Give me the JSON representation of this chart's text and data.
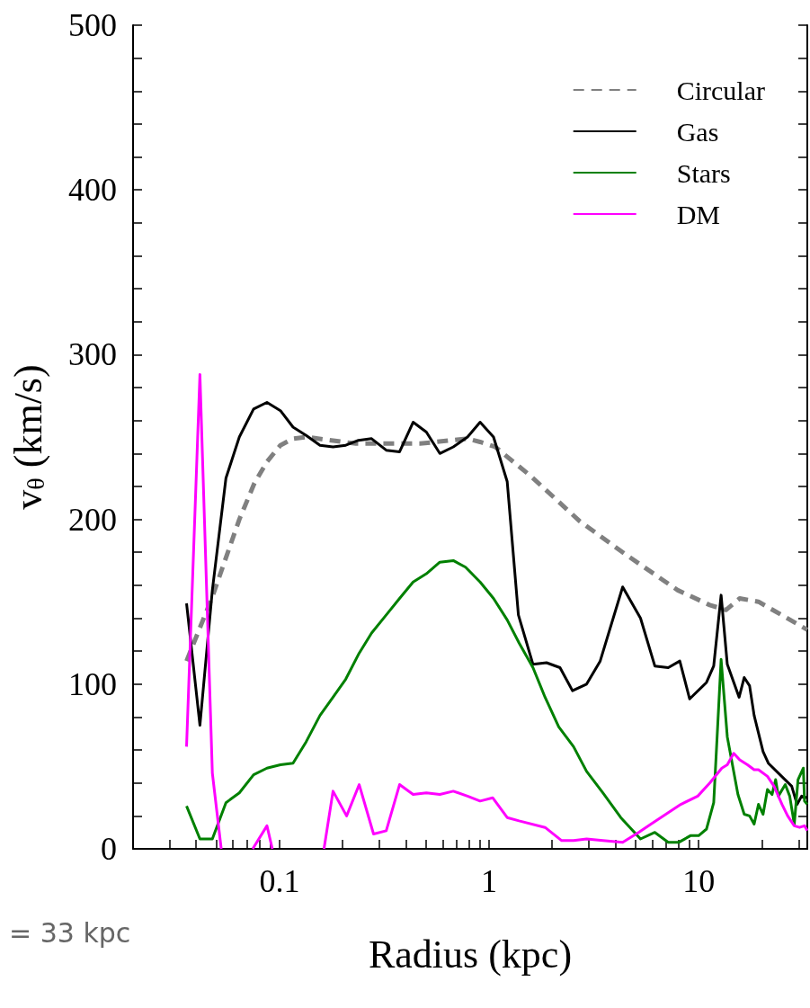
{
  "chart_data": {
    "type": "line",
    "xlabel": "Radius (kpc)",
    "ylabel": "v$_{θ}$ (km/s)",
    "log": "x",
    "xlim": [
      0.02,
      33
    ],
    "ylim": [
      0,
      500
    ],
    "xticks": [
      {
        "value": 0.02,
        "label": null
      },
      {
        "value": 0.03,
        "label": null
      },
      {
        "value": 0.04,
        "label": null
      },
      {
        "value": 0.05,
        "label": null
      },
      {
        "value": 0.06,
        "label": null
      },
      {
        "value": 0.07,
        "label": null
      },
      {
        "value": 0.08,
        "label": null
      },
      {
        "value": 0.09,
        "label": null
      },
      0.1,
      {
        "value": 0.2,
        "label": null
      },
      {
        "value": 0.3,
        "label": null
      },
      {
        "value": 0.4,
        "label": null
      },
      {
        "value": 0.5,
        "label": null
      },
      {
        "value": 0.6,
        "label": null
      },
      {
        "value": 0.7,
        "label": null
      },
      {
        "value": 0.8,
        "label": null
      },
      {
        "value": 0.9,
        "label": null
      },
      1,
      {
        "value": 2,
        "label": null
      },
      {
        "value": 3,
        "label": null
      },
      {
        "value": 4,
        "label": null
      },
      {
        "value": 5,
        "label": null
      },
      {
        "value": 6,
        "label": null
      },
      {
        "value": 7,
        "label": null
      },
      {
        "value": 8,
        "label": null
      },
      {
        "value": 9,
        "label": null
      },
      10,
      {
        "value": 20,
        "label": null
      },
      {
        "value": 30,
        "label": null
      }
    ],
    "yticks": [
      0,
      {
        "value": 20,
        "label": null
      },
      {
        "value": 40,
        "label": null
      },
      {
        "value": 60,
        "label": null
      },
      {
        "value": 80,
        "label": null
      },
      100,
      {
        "value": 120,
        "label": null
      },
      {
        "value": 140,
        "label": null
      },
      {
        "value": 160,
        "label": null
      },
      {
        "value": 180,
        "label": null
      },
      200,
      {
        "value": 220,
        "label": null
      },
      {
        "value": 240,
        "label": null
      },
      {
        "value": 260,
        "label": null
      },
      {
        "value": 280,
        "label": null
      },
      300,
      {
        "value": 320,
        "label": null
      },
      {
        "value": 340,
        "label": null
      },
      {
        "value": 360,
        "label": null
      },
      {
        "value": 380,
        "label": null
      },
      400,
      {
        "value": 420,
        "label": null
      },
      {
        "value": 440,
        "label": null
      },
      {
        "value": 460,
        "label": null
      },
      {
        "value": 480,
        "label": null
      },
      500
    ],
    "grid": false,
    "legend": "top right",
    "marker": "none",
    "annotations": [
      "= 33 kpc"
    ],
    "series": [
      {
        "name": "Circular",
        "color": "#808080",
        "line_style": "dashed",
        "x": [
          0.036,
          0.0478,
          0.0549,
          0.0643,
          0.0759,
          0.0871,
          0.101,
          0.116,
          0.134,
          0.231,
          0.468,
          0.789,
          0.906,
          1.07,
          1.59,
          2.7,
          4.45,
          7.95,
          11.3,
          13.5,
          15.7,
          19.3,
          33
        ],
        "values": [
          114,
          153,
          175,
          200,
          222,
          235,
          245,
          249,
          250,
          246,
          246,
          249,
          247,
          244,
          226,
          199,
          179,
          157,
          148,
          145,
          152,
          150,
          133
        ]
      },
      {
        "name": "Gas",
        "color": "#000000",
        "line_style": "solid",
        "x": [
          0.036,
          0.0417,
          0.0478,
          0.0555,
          0.0643,
          0.0752,
          0.0871,
          0.101,
          0.116,
          0.134,
          0.156,
          0.18,
          0.207,
          0.238,
          0.275,
          0.323,
          0.374,
          0.434,
          0.502,
          0.582,
          0.675,
          0.789,
          0.906,
          1.05,
          1.22,
          1.38,
          1.62,
          1.88,
          2.18,
          2.5,
          2.92,
          3.39,
          4.34,
          5.28,
          6.18,
          7.16,
          8.13,
          9.06,
          10.9,
          11.8,
          12.8,
          13.7,
          15.6,
          16.5,
          17.5,
          18.4,
          20.3,
          21.5,
          27.8,
          29.5,
          31,
          33
        ],
        "values": [
          149,
          75,
          157,
          225,
          250,
          267,
          271,
          266,
          256,
          251,
          245,
          244,
          245,
          248,
          249,
          242,
          241,
          259,
          253,
          240,
          244,
          250,
          259,
          250,
          223,
          142,
          112,
          113,
          110,
          96,
          100,
          114,
          159,
          140,
          111,
          110,
          114,
          91,
          101,
          111,
          154,
          112,
          92,
          104,
          99,
          81,
          59,
          52,
          38,
          27,
          32,
          31
        ]
      },
      {
        "name": "Stars",
        "color": "#008000",
        "line_style": "solid",
        "x": [
          0.036,
          0.0417,
          0.0478,
          0.0555,
          0.0643,
          0.0752,
          0.0871,
          0.101,
          0.116,
          0.134,
          0.156,
          0.18,
          0.207,
          0.238,
          0.275,
          0.323,
          0.374,
          0.434,
          0.502,
          0.582,
          0.675,
          0.772,
          0.906,
          1.05,
          1.22,
          1.39,
          1.62,
          1.85,
          2.15,
          2.53,
          2.92,
          3.49,
          4.25,
          5.28,
          6.18,
          7.16,
          8.06,
          9.14,
          10,
          10.9,
          11.8,
          12.8,
          13.7,
          15.4,
          16.5,
          17.5,
          18.4,
          19.3,
          20.3,
          21.3,
          22.4,
          23.3,
          24,
          25.9,
          27.2,
          28.6,
          29.8,
          31.6,
          32,
          33
        ],
        "values": [
          26,
          6,
          6,
          28,
          34,
          45,
          49,
          51,
          52,
          65,
          81,
          92,
          103,
          118,
          131,
          142,
          152,
          162,
          167,
          174,
          175,
          171,
          162,
          152,
          139,
          125,
          110,
          92,
          74,
          62,
          47,
          34,
          19,
          6,
          10,
          4,
          4,
          8,
          8,
          12,
          28,
          115,
          68,
          33,
          21,
          20,
          15,
          27,
          21,
          36,
          33,
          42,
          32,
          39,
          32,
          15,
          42,
          49,
          29,
          27
        ]
      },
      {
        "name": "DM",
        "color": "#ff00ff",
        "line_style": "solid",
        "x": [
          0.036,
          0.0417,
          0.0478,
          0.0527,
          0.063,
          0.0745,
          0.0871,
          0.0924,
          0.13,
          0.163,
          0.18,
          0.209,
          0.24,
          0.281,
          0.323,
          0.374,
          0.434,
          0.502,
          0.582,
          0.675,
          0.789,
          0.906,
          1.04,
          1.22,
          1.39,
          1.85,
          2.22,
          2.53,
          2.92,
          3.49,
          4.34,
          5.17,
          5.92,
          7.16,
          8.22,
          9.9,
          11.3,
          12.9,
          13.7,
          14.7,
          15.7,
          17.1,
          18.4,
          19.3,
          21.3,
          22.9,
          25,
          26.6,
          28.6,
          30.3,
          32,
          33
        ],
        "values": [
          62,
          288,
          46,
          0,
          null,
          0,
          14,
          0,
          null,
          0,
          35,
          20,
          39,
          9,
          11,
          39,
          33,
          34,
          33,
          35,
          32,
          29,
          31,
          19,
          17,
          13,
          5,
          5,
          6,
          5,
          4,
          10,
          15,
          22,
          27,
          32,
          40,
          49,
          51,
          58,
          54,
          51,
          48,
          48,
          44,
          38,
          27,
          20,
          14,
          13,
          14,
          11
        ]
      }
    ]
  }
}
